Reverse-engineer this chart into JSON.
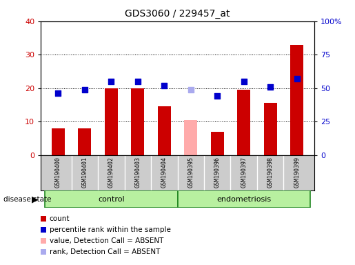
{
  "title": "GDS3060 / 229457_at",
  "samples": [
    "GSM190400",
    "GSM190401",
    "GSM190402",
    "GSM190403",
    "GSM190404",
    "GSM190395",
    "GSM190396",
    "GSM190397",
    "GSM190398",
    "GSM190399"
  ],
  "count_values": [
    8,
    8,
    20,
    20,
    14.5,
    null,
    7,
    19.5,
    15.5,
    33
  ],
  "count_absent": [
    null,
    null,
    null,
    null,
    null,
    10.5,
    null,
    null,
    null,
    null
  ],
  "rank_values": [
    46,
    49,
    55,
    55,
    52,
    null,
    44,
    55,
    51,
    57
  ],
  "rank_absent": [
    null,
    null,
    null,
    null,
    null,
    49,
    null,
    null,
    null,
    null
  ],
  "groups": [
    {
      "label": "control",
      "start": 0,
      "end": 4
    },
    {
      "label": "endometriosis",
      "start": 5,
      "end": 9
    }
  ],
  "left_ylim": [
    0,
    40
  ],
  "right_ylim": [
    0,
    100
  ],
  "left_yticks": [
    0,
    10,
    20,
    30,
    40
  ],
  "right_yticks": [
    0,
    25,
    50,
    75,
    100
  ],
  "right_yticklabels": [
    "0",
    "25",
    "50",
    "75",
    "100%"
  ],
  "bar_color_present": "#cc0000",
  "bar_color_absent": "#ffaaaa",
  "dot_color_present": "#0000cc",
  "dot_color_absent": "#aaaaee",
  "bar_width": 0.5,
  "plot_bg_color": "#ffffff",
  "label_bg_color": "#cccccc",
  "group_bg_color_light": "#b8f0a0",
  "group_bg_color_dark": "#44dd44",
  "group_line_color": "#228822",
  "grid_color": "#000000",
  "left_label_color": "#cc0000",
  "right_label_color": "#0000cc",
  "dot_size": 40,
  "dot_marker": "s",
  "figsize": [
    5.15,
    3.84
  ],
  "dpi": 100
}
